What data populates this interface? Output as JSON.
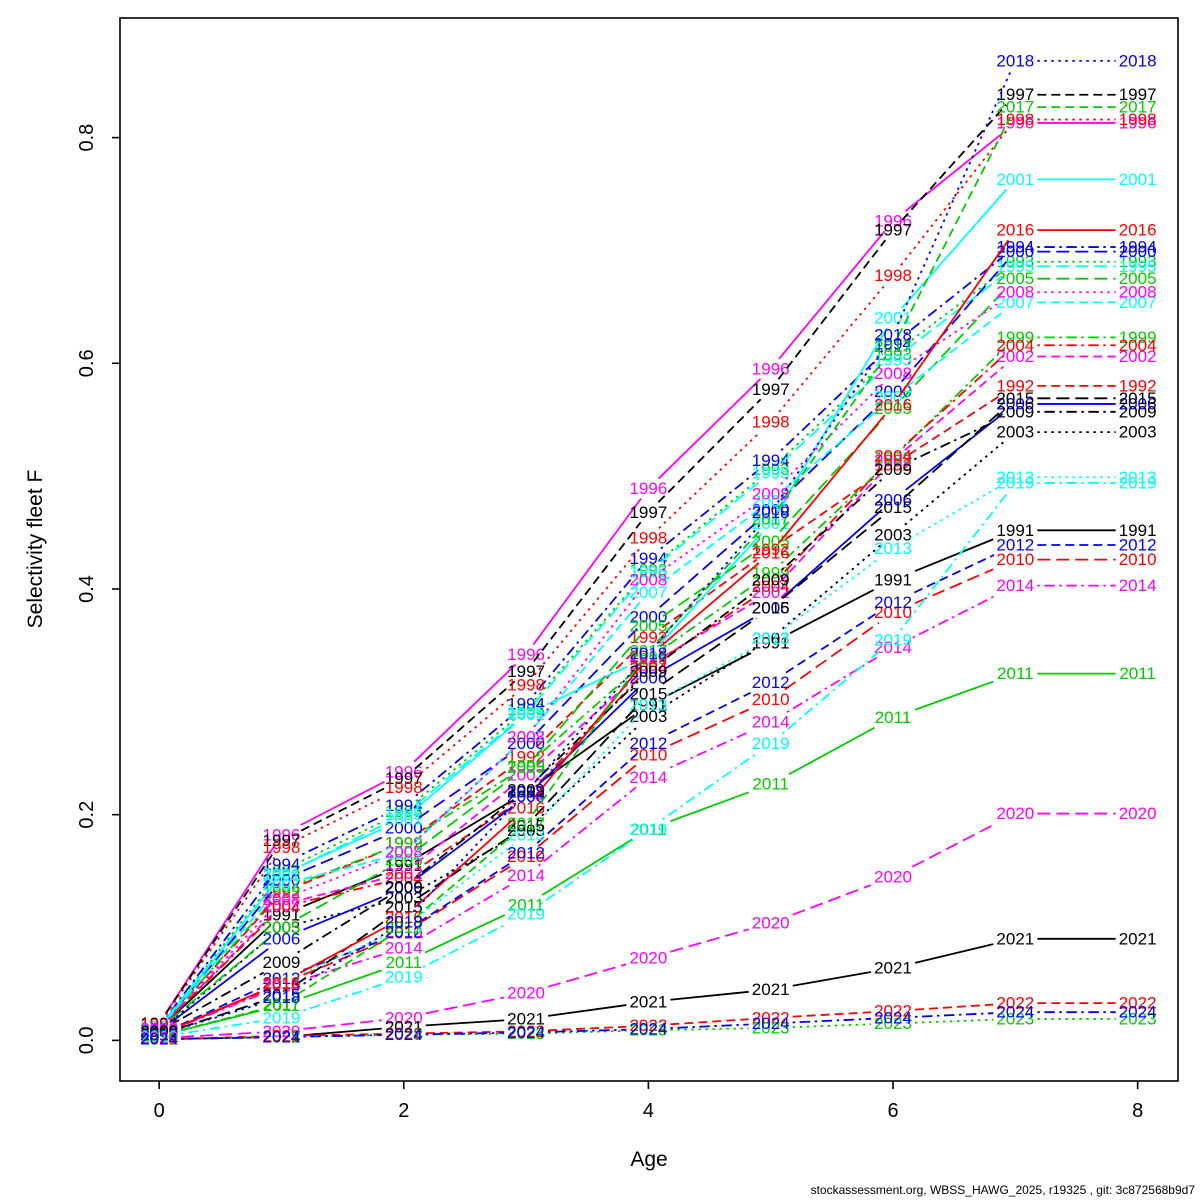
{
  "figure": {
    "ylabel": "Selectivity fleet F",
    "xlabel": "Age",
    "footer": "stockassessment.org, WBSS_HAWG_2025, r19325 , git: 3c872568b9d7"
  },
  "chart_data": {
    "type": "line",
    "title": "",
    "xlabel": "Age",
    "ylabel": "Selectivity fleet F",
    "footer": "stockassessment.org, WBSS_HAWG_2025, r19325 , git: 3c872568b9d7",
    "x": [
      0,
      1,
      2,
      3,
      4,
      5,
      6,
      7,
      8
    ],
    "xticks": [
      0,
      2,
      4,
      6,
      8
    ],
    "yticks": [
      0.0,
      0.2,
      0.4,
      0.6,
      0.8
    ],
    "xlim": [
      -0.32,
      8.33
    ],
    "ylim": [
      -0.036,
      0.906
    ],
    "grid": false,
    "legend": "year-labels-on-every-point",
    "label_points": true,
    "series": [
      {
        "name": "1991",
        "color": "#000000",
        "dash": "solid",
        "values": [
          0.01,
          0.111,
          0.155,
          0.22,
          0.297,
          0.352,
          0.408,
          0.452,
          0.452
        ]
      },
      {
        "name": "1992",
        "color": "#FF0000",
        "dash": "dashed",
        "values": [
          0.01,
          0.131,
          0.175,
          0.251,
          0.357,
          0.435,
          0.51,
          0.58,
          0.58
        ]
      },
      {
        "name": "1993",
        "color": "#00CC00",
        "dash": "dotted",
        "values": [
          0.012,
          0.15,
          0.203,
          0.293,
          0.417,
          0.506,
          0.608,
          0.69,
          0.69
        ]
      },
      {
        "name": "1994",
        "color": "#0000FF",
        "dash": "dotdash",
        "values": [
          0.012,
          0.156,
          0.208,
          0.298,
          0.427,
          0.514,
          0.617,
          0.703,
          0.703
        ]
      },
      {
        "name": "1995",
        "color": "#00FFFF",
        "dash": "longdash",
        "values": [
          0.012,
          0.146,
          0.2,
          0.29,
          0.415,
          0.503,
          0.603,
          0.686,
          0.686
        ]
      },
      {
        "name": "1996",
        "color": "#FF00FF",
        "dash": "solid",
        "values": [
          0.015,
          0.182,
          0.238,
          0.342,
          0.489,
          0.595,
          0.726,
          0.813,
          0.813
        ]
      },
      {
        "name": "1997",
        "color": "#000000",
        "dash": "dashed",
        "values": [
          0.015,
          0.177,
          0.232,
          0.327,
          0.468,
          0.577,
          0.718,
          0.838,
          0.838
        ]
      },
      {
        "name": "1998",
        "color": "#FF0000",
        "dash": "dotted",
        "values": [
          0.014,
          0.171,
          0.224,
          0.315,
          0.445,
          0.548,
          0.678,
          0.816,
          0.816
        ]
      },
      {
        "name": "1999",
        "color": "#00CC00",
        "dash": "dotdash",
        "values": [
          0.01,
          0.133,
          0.175,
          0.243,
          0.338,
          0.414,
          0.516,
          0.623,
          0.623
        ]
      },
      {
        "name": "2000",
        "color": "#0000FF",
        "dash": "longdash",
        "values": [
          0.01,
          0.142,
          0.188,
          0.263,
          0.375,
          0.47,
          0.575,
          0.699,
          0.699
        ]
      },
      {
        "name": "2001",
        "color": "#00FFFF",
        "dash": "solid",
        "values": [
          0.01,
          0.147,
          0.196,
          0.289,
          0.34,
          0.458,
          0.64,
          0.763,
          0.763
        ]
      },
      {
        "name": "2002",
        "color": "#FF00FF",
        "dash": "dashed",
        "values": [
          0.01,
          0.12,
          0.148,
          0.235,
          0.332,
          0.397,
          0.514,
          0.606,
          0.606
        ]
      },
      {
        "name": "2003",
        "color": "#000000",
        "dash": "dotted",
        "values": [
          0.008,
          0.1,
          0.126,
          0.186,
          0.287,
          0.356,
          0.448,
          0.539,
          0.539
        ]
      },
      {
        "name": "2004",
        "color": "#FF0000",
        "dash": "dotdash",
        "values": [
          0.01,
          0.118,
          0.144,
          0.216,
          0.33,
          0.402,
          0.518,
          0.616,
          0.616
        ]
      },
      {
        "name": "2005",
        "color": "#00CC00",
        "dash": "longdash",
        "values": [
          0.01,
          0.1,
          0.16,
          0.242,
          0.367,
          0.442,
          0.56,
          0.675,
          0.675
        ]
      },
      {
        "name": "2006",
        "color": "#0000FF",
        "dash": "solid",
        "values": [
          0.008,
          0.09,
          0.135,
          0.216,
          0.321,
          0.383,
          0.479,
          0.564,
          0.564
        ]
      },
      {
        "name": "2007",
        "color": "#00FFFF",
        "dash": "dashed",
        "values": [
          0.01,
          0.138,
          0.166,
          0.269,
          0.397,
          0.478,
          0.57,
          0.654,
          0.654
        ]
      },
      {
        "name": "2008",
        "color": "#FF00FF",
        "dash": "dotted",
        "values": [
          0.01,
          0.125,
          0.167,
          0.269,
          0.408,
          0.484,
          0.591,
          0.663,
          0.663
        ]
      },
      {
        "name": "2009",
        "color": "#000000",
        "dash": "dotdash",
        "values": [
          0.008,
          0.069,
          0.136,
          0.222,
          0.327,
          0.408,
          0.506,
          0.557,
          0.557
        ]
      },
      {
        "name": "2010",
        "color": "#FF0000",
        "dash": "longdash",
        "values": [
          0.005,
          0.05,
          0.095,
          0.163,
          0.253,
          0.302,
          0.379,
          0.426,
          0.426
        ]
      },
      {
        "name": "2011",
        "color": "#00CC00",
        "dash": "solid",
        "values": [
          0.004,
          0.031,
          0.069,
          0.12,
          0.187,
          0.227,
          0.286,
          0.325,
          0.325
        ]
      },
      {
        "name": "2012",
        "color": "#0000FF",
        "dash": "dashed",
        "values": [
          0.005,
          0.055,
          0.096,
          0.166,
          0.263,
          0.317,
          0.388,
          0.439,
          0.439
        ]
      },
      {
        "name": "2013",
        "color": "#00FFFF",
        "dash": "dotted",
        "values": [
          0.005,
          0.051,
          0.1,
          0.182,
          0.297,
          0.356,
          0.436,
          0.499,
          0.499
        ]
      },
      {
        "name": "2014",
        "color": "#FF00FF",
        "dash": "dotdash",
        "values": [
          0.005,
          0.048,
          0.082,
          0.146,
          0.233,
          0.282,
          0.348,
          0.403,
          0.403
        ]
      },
      {
        "name": "2015",
        "color": "#000000",
        "dash": "longdash",
        "values": [
          0.005,
          0.04,
          0.118,
          0.19,
          0.307,
          0.383,
          0.472,
          0.569,
          0.569
        ]
      },
      {
        "name": "2016",
        "color": "#FF0000",
        "dash": "solid",
        "values": [
          0.005,
          0.051,
          0.109,
          0.206,
          0.34,
          0.432,
          0.563,
          0.718,
          0.718
        ]
      },
      {
        "name": "2017",
        "color": "#00CC00",
        "dash": "dashed",
        "values": [
          0.004,
          0.032,
          0.1,
          0.192,
          0.345,
          0.462,
          0.615,
          0.827,
          0.827
        ]
      },
      {
        "name": "2018",
        "color": "#0000FF",
        "dash": "dotted",
        "values": [
          0.005,
          0.038,
          0.105,
          0.22,
          0.343,
          0.468,
          0.625,
          0.868,
          0.868
        ]
      },
      {
        "name": "2019",
        "color": "#00FFFF",
        "dash": "dotdash",
        "values": [
          0.003,
          0.02,
          0.056,
          0.112,
          0.187,
          0.263,
          0.355,
          0.494,
          0.494
        ]
      },
      {
        "name": "2020",
        "color": "#FF00FF",
        "dash": "longdash",
        "values": [
          0.002,
          0.008,
          0.02,
          0.042,
          0.073,
          0.104,
          0.145,
          0.201,
          0.201
        ]
      },
      {
        "name": "2021",
        "color": "#000000",
        "dash": "solid",
        "values": [
          0.001,
          0.003,
          0.012,
          0.019,
          0.034,
          0.045,
          0.064,
          0.09,
          0.09
        ]
      },
      {
        "name": "2022",
        "color": "#FF0000",
        "dash": "dashed",
        "values": [
          0.001,
          0.004,
          0.006,
          0.008,
          0.013,
          0.02,
          0.026,
          0.033,
          0.033
        ]
      },
      {
        "name": "2023",
        "color": "#00CC00",
        "dash": "dotted",
        "values": [
          0.001,
          0.003,
          0.005,
          0.006,
          0.009,
          0.011,
          0.015,
          0.019,
          0.019
        ]
      },
      {
        "name": "2024",
        "color": "#0000FF",
        "dash": "dotdash",
        "values": [
          0.001,
          0.003,
          0.005,
          0.007,
          0.01,
          0.015,
          0.02,
          0.025,
          0.025
        ]
      }
    ]
  }
}
